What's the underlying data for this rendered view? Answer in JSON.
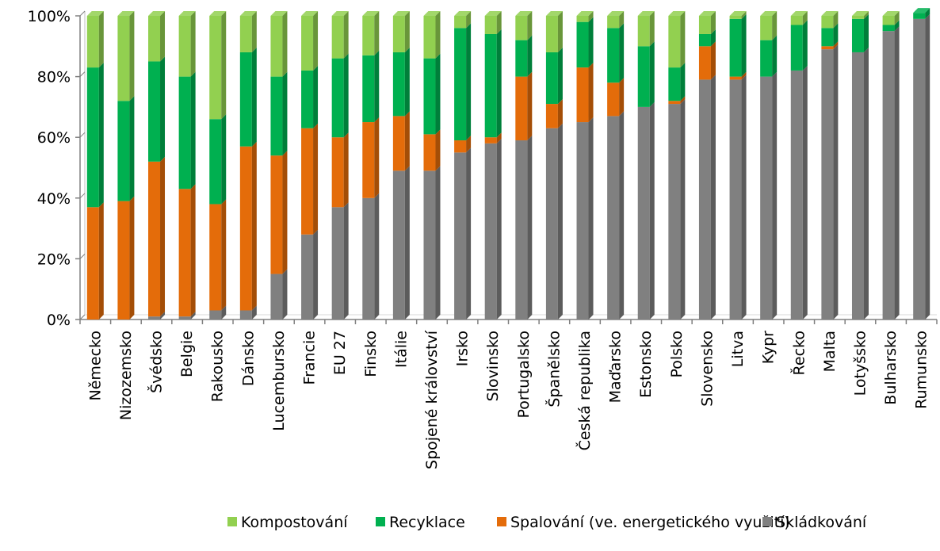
{
  "chart_data": {
    "type": "bar",
    "stacked": true,
    "percent": true,
    "y_tick_labels": [
      "0%",
      "20%",
      "40%",
      "60%",
      "80%",
      "100%"
    ],
    "ylim": [
      0,
      100
    ],
    "grid": false,
    "legend_position": "bottom",
    "categories": [
      "Německo",
      "Nizozemsko",
      "Švédsko",
      "Belgie",
      "Rakousko",
      "Dánsko",
      "Lucembursko",
      "Francie",
      "EU 27",
      "Finsko",
      "Itálie",
      "Spojené království",
      "Irsko",
      "Slovinsko",
      "Portugalsko",
      "Španělsko",
      "Česká republika",
      "Maďarsko",
      "Estonsko",
      "Polsko",
      "Slovensko",
      "Litva",
      "Kypr",
      "Řecko",
      "Malta",
      "Lotyšsko",
      "Bulharsko",
      "Rumunsko"
    ],
    "series": [
      {
        "name": "Skládkování",
        "color": "#808080",
        "values": [
          0,
          0,
          1,
          1,
          3,
          3,
          15,
          28,
          37,
          40,
          49,
          49,
          55,
          58,
          59,
          63,
          65,
          67,
          70,
          71,
          79,
          79,
          80,
          82,
          89,
          88,
          95,
          99
        ]
      },
      {
        "name": "Spalování (ve. energetického využití)",
        "color": "#e46c0a",
        "values": [
          37,
          39,
          51,
          42,
          35,
          54,
          39,
          35,
          23,
          25,
          18,
          12,
          4,
          2,
          21,
          8,
          18,
          11,
          0,
          1,
          11,
          1,
          0,
          0,
          1,
          0,
          0,
          0
        ]
      },
      {
        "name": "Recyklace",
        "color": "#00b050",
        "values": [
          46,
          33,
          33,
          37,
          28,
          31,
          26,
          19,
          26,
          22,
          21,
          25,
          37,
          34,
          12,
          17,
          15,
          18,
          20,
          11,
          4,
          19,
          12,
          15,
          6,
          11,
          2,
          2
        ]
      },
      {
        "name": "Kompostování",
        "color": "#92d050",
        "values": [
          17,
          28,
          15,
          20,
          34,
          12,
          20,
          18,
          14,
          13,
          12,
          14,
          4,
          6,
          8,
          12,
          2,
          4,
          10,
          17,
          6,
          1,
          8,
          3,
          4,
          1,
          3,
          0
        ]
      }
    ],
    "legend_order": [
      "Kompostování",
      "Recyklace",
      "Spalování (ve. energetického využití)",
      "Skládkování"
    ]
  }
}
